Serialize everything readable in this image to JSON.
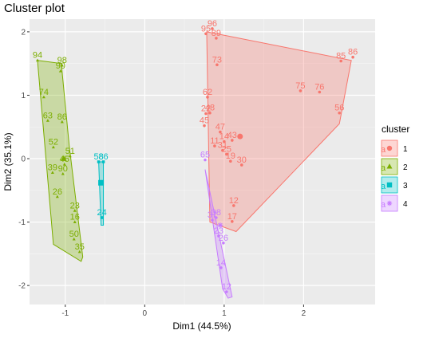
{
  "chart_data": {
    "type": "scatter",
    "title": "Cluster plot",
    "xlabel": "Dim1 (44.5%)",
    "ylabel": "Dim2 (35.1%)",
    "xlim": [
      -1.45,
      2.9
    ],
    "ylim": [
      -2.3,
      2.2
    ],
    "x_ticks": [
      -1,
      0,
      1,
      2
    ],
    "y_ticks": [
      -2,
      -1,
      0,
      1,
      2
    ],
    "grid": true,
    "legend_position": "right",
    "legend_title": "cluster",
    "series": [
      {
        "name": "1",
        "color": "#F8766D",
        "marker": "circle",
        "hull": [
          [
            0.78,
            2.0
          ],
          [
            2.6,
            1.55
          ],
          [
            2.45,
            0.55
          ],
          [
            1.15,
            -1.15
          ],
          [
            0.82,
            -1.0
          ]
        ],
        "center": [
          1.2,
          0.35
        ],
        "points": [
          {
            "label": "96",
            "x": 0.85,
            "y": 2.05
          },
          {
            "label": "95",
            "x": 0.77,
            "y": 1.97
          },
          {
            "label": "89",
            "x": 0.9,
            "y": 1.9
          },
          {
            "label": "86",
            "x": 2.62,
            "y": 1.6
          },
          {
            "label": "85",
            "x": 2.47,
            "y": 1.54
          },
          {
            "label": "73",
            "x": 0.91,
            "y": 1.48
          },
          {
            "label": "75",
            "x": 1.96,
            "y": 1.07
          },
          {
            "label": "76",
            "x": 2.2,
            "y": 1.05
          },
          {
            "label": "62",
            "x": 0.79,
            "y": 0.97
          },
          {
            "label": "22",
            "x": 0.77,
            "y": 0.71
          },
          {
            "label": "56",
            "x": 2.45,
            "y": 0.72
          },
          {
            "label": "48",
            "x": 0.82,
            "y": 0.72
          },
          {
            "label": "45",
            "x": 0.75,
            "y": 0.52
          },
          {
            "label": "47",
            "x": 0.95,
            "y": 0.42
          },
          {
            "label": "43",
            "x": 1.1,
            "y": 0.29
          },
          {
            "label": "14",
            "x": 1.0,
            "y": 0.27
          },
          {
            "label": "11",
            "x": 0.88,
            "y": 0.2
          },
          {
            "label": "31",
            "x": 0.98,
            "y": 0.13
          },
          {
            "label": "25",
            "x": 1.03,
            "y": 0.07
          },
          {
            "label": "19",
            "x": 1.08,
            "y": -0.04
          },
          {
            "label": "30",
            "x": 1.22,
            "y": -0.1
          },
          {
            "label": "12",
            "x": 1.12,
            "y": -0.74
          },
          {
            "label": "17",
            "x": 1.1,
            "y": -0.99
          }
        ]
      },
      {
        "name": "2",
        "color": "#7CAE00",
        "marker": "triangle",
        "hull": [
          [
            -1.35,
            1.55
          ],
          [
            -1.05,
            1.5
          ],
          [
            -0.95,
            0.2
          ],
          [
            -0.78,
            -1.55
          ],
          [
            -0.8,
            -1.62
          ],
          [
            -1.15,
            -1.35
          ]
        ],
        "center": [
          -1.02,
          0.0
        ],
        "points": [
          {
            "label": "94",
            "x": -1.35,
            "y": 1.55
          },
          {
            "label": "98",
            "x": -1.04,
            "y": 1.47
          },
          {
            "label": "90",
            "x": -1.06,
            "y": 1.38
          },
          {
            "label": "74",
            "x": -1.27,
            "y": 0.97
          },
          {
            "label": "63",
            "x": -1.22,
            "y": 0.6
          },
          {
            "label": "86",
            "x": -1.04,
            "y": 0.58
          },
          {
            "label": "52",
            "x": -1.15,
            "y": 0.18
          },
          {
            "label": "51",
            "x": -0.94,
            "y": 0.04
          },
          {
            "label": "39",
            "x": -1.16,
            "y": -0.22
          },
          {
            "label": "90",
            "x": -1.03,
            "y": -0.24
          },
          {
            "label": "45",
            "x": -1.01,
            "y": -0.09
          },
          {
            "label": "26",
            "x": -1.1,
            "y": -0.6
          },
          {
            "label": "23",
            "x": -0.88,
            "y": -0.82
          },
          {
            "label": "16",
            "x": -0.88,
            "y": -1.0
          },
          {
            "label": "50",
            "x": -0.89,
            "y": -1.27
          },
          {
            "label": "35",
            "x": -0.82,
            "y": -1.47
          }
        ]
      },
      {
        "name": "3",
        "color": "#00BFC4",
        "marker": "square",
        "hull": [
          [
            -0.58,
            -0.05
          ],
          [
            -0.52,
            -0.05
          ],
          [
            -0.52,
            -1.05
          ],
          [
            -0.55,
            -1.05
          ]
        ],
        "center": [
          -0.55,
          -0.38
        ],
        "points": [
          {
            "label": "58",
            "x": -0.58,
            "y": -0.05
          },
          {
            "label": "86",
            "x": -0.52,
            "y": -0.05
          },
          {
            "label": "24",
            "x": -0.54,
            "y": -0.93
          }
        ]
      },
      {
        "name": "4",
        "color": "#C77CFF",
        "marker": "star",
        "hull": [
          [
            0.76,
            -0.17
          ],
          [
            1.1,
            -2.18
          ],
          [
            1.05,
            -2.2
          ],
          [
            0.98,
            -2.05
          ]
        ],
        "center": [
          0.95,
          -1.05
        ],
        "points": [
          {
            "label": "65",
            "x": 0.76,
            "y": -0.02
          },
          {
            "label": "38",
            "x": 0.9,
            "y": -0.93
          },
          {
            "label": "37",
            "x": 0.85,
            "y": -0.97
          },
          {
            "label": "23",
            "x": 0.93,
            "y": -1.22
          },
          {
            "label": "26",
            "x": 0.99,
            "y": -1.33
          },
          {
            "label": "14",
            "x": 0.96,
            "y": -1.72
          },
          {
            "label": "12",
            "x": 1.03,
            "y": -2.1
          }
        ]
      }
    ]
  }
}
